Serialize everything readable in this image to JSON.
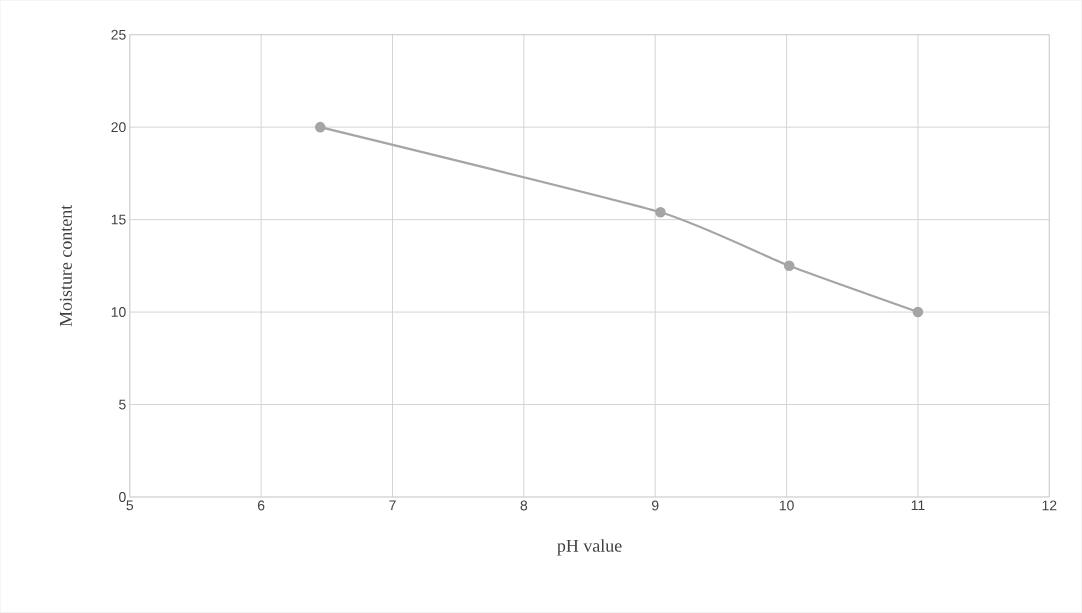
{
  "chart_data": {
    "type": "line",
    "xlabel": "pH value",
    "ylabel": "Moisture content",
    "series": [
      {
        "color": "#a5a5a5",
        "x": [
          6.45,
          9.04,
          10.02,
          11
        ],
        "values": [
          20,
          15.4,
          12.5,
          10
        ]
      }
    ],
    "xlim": [
      5,
      12
    ],
    "ylim": [
      0,
      25
    ],
    "xticks": [
      5,
      6,
      7,
      8,
      9,
      10,
      11,
      12
    ],
    "yticks": [
      0,
      5,
      10,
      15,
      20,
      25
    ],
    "grid": true,
    "marker": "circle",
    "line_style": "solid"
  }
}
